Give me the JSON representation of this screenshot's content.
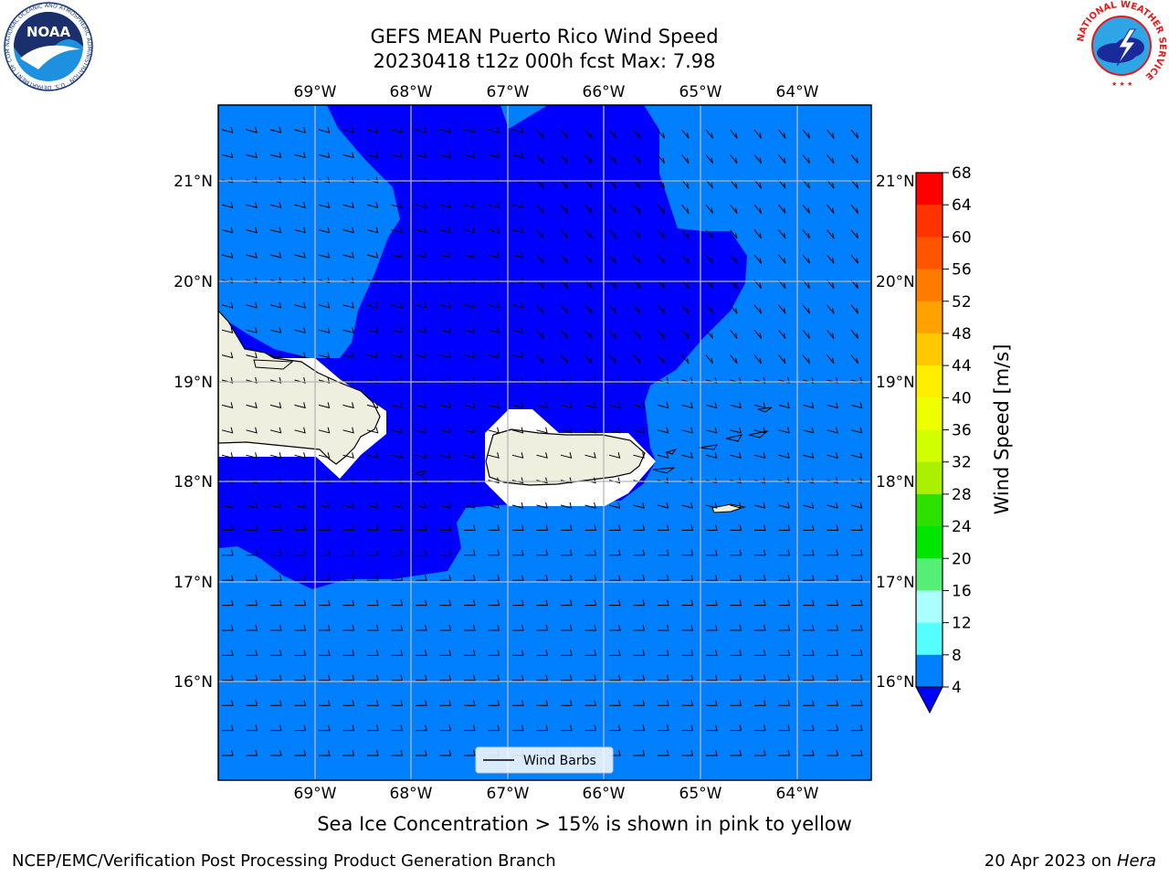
{
  "title": {
    "line1": "GEFS MEAN Puerto Rico Wind Speed",
    "line2": "20230418 t12z 000h fcst   Max: 7.98"
  },
  "map": {
    "lon_labels": [
      "69°W",
      "68°W",
      "67°W",
      "66°W",
      "65°W",
      "64°W"
    ],
    "lat_labels": [
      "21°N",
      "20°N",
      "19°N",
      "18°N",
      "17°N",
      "16°N"
    ],
    "colors": {
      "ocean_light": "#0080ff",
      "ocean_dark": "#0000ff",
      "land": "#efefdf",
      "grid": "#b8b8b8"
    },
    "legend_label": "Wind Barbs"
  },
  "colorbar": {
    "label": "Wind Speed [m/s]",
    "ticks": [
      "68",
      "64",
      "60",
      "56",
      "52",
      "48",
      "44",
      "40",
      "36",
      "32",
      "28",
      "24",
      "20",
      "16",
      "12",
      "8",
      "4"
    ],
    "colors": [
      "#ff0000",
      "#ff2400",
      "#ff4800",
      "#ff6c00",
      "#ff9000",
      "#ffb400",
      "#ffd800",
      "#ffff00",
      "#d8ff00",
      "#b4ff00",
      "#5ae000",
      "#00f000",
      "#00e000",
      "#50f080",
      "#a0ffff",
      "#50ffff",
      "#00f0ff",
      "#0080ff"
    ],
    "extend_color": "#0000ff"
  },
  "logos": {
    "noaa_text": "NOAA",
    "noaa_ring": "NATIONAL OCEANIC AND ATMOSPHERIC ADMINISTRATION · U.S. DEPARTMENT OF COMMERCE",
    "nws_ring": "NATIONAL WEATHER SERVICE"
  },
  "caption": "Sea Ice Concentration > 15% is shown in pink to yellow",
  "footer": {
    "left": "NCEP/EMC/Verification Post Processing Product Generation Branch",
    "right_prefix": "20 Apr 2023 on ",
    "right_host": "Hera"
  }
}
